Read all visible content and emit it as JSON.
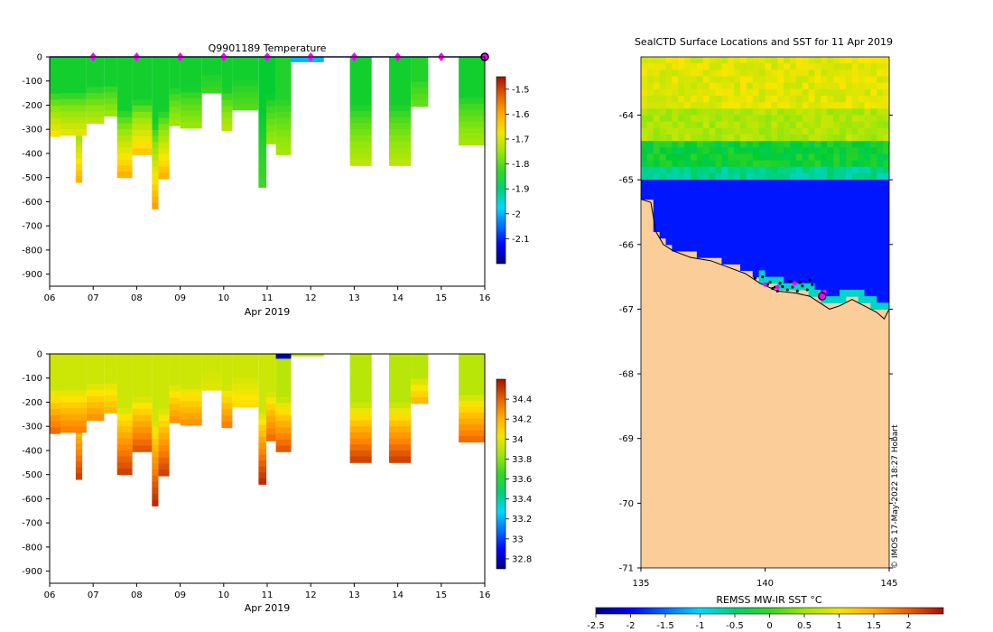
{
  "copyright": "© IMOS 17-May-2022 18:27 Hobart",
  "chart_data": [
    {
      "type": "heatmap",
      "title": "Q9901189  Temperature",
      "xlabel": "Apr 2019",
      "x_ticks": [
        "06",
        "07",
        "08",
        "09",
        "10",
        "11",
        "12",
        "13",
        "14",
        "15",
        "16"
      ],
      "x_range_days": [
        6,
        16
      ],
      "y_ticks": [
        "0",
        "-100",
        "-200",
        "-300",
        "-400",
        "-500",
        "-600",
        "-700",
        "-800",
        "-900"
      ],
      "y_range": [
        -950,
        0
      ],
      "colorbar_ticks": [
        "-1.5",
        "-1.6",
        "-1.7",
        "-1.8",
        "-1.9",
        "-2",
        "-2.1"
      ],
      "colorbar_range": [
        -2.2,
        -1.45
      ],
      "profile_marker_days": [
        7,
        8,
        9,
        10,
        11,
        12,
        13,
        14,
        15
      ],
      "profiles": [
        {
          "t0": 6.0,
          "t1": 6.25,
          "max_depth": 330,
          "surface": -1.85,
          "bottom": -1.66
        },
        {
          "t0": 6.25,
          "t1": 6.85,
          "max_depth": 325,
          "surface": -1.85,
          "bottom": -1.68
        },
        {
          "t0": 6.6,
          "t1": 6.75,
          "max_depth": 520,
          "surface": -1.85,
          "bottom": -1.6
        },
        {
          "t0": 6.85,
          "t1": 7.25,
          "max_depth": 275,
          "surface": -1.85,
          "bottom": -1.72
        },
        {
          "t0": 7.25,
          "t1": 7.55,
          "max_depth": 245,
          "surface": -1.85,
          "bottom": -1.75
        },
        {
          "t0": 7.55,
          "t1": 7.9,
          "max_depth": 500,
          "surface": -1.85,
          "bottom": -1.6
        },
        {
          "t0": 7.9,
          "t1": 8.35,
          "max_depth": 405,
          "surface": -1.85,
          "bottom": -1.62
        },
        {
          "t0": 8.35,
          "t1": 8.5,
          "max_depth": 630,
          "surface": -1.85,
          "bottom": -1.58
        },
        {
          "t0": 8.5,
          "t1": 8.75,
          "max_depth": 505,
          "surface": -1.85,
          "bottom": -1.6
        },
        {
          "t0": 8.75,
          "t1": 9.0,
          "max_depth": 285,
          "surface": -1.85,
          "bottom": -1.74
        },
        {
          "t0": 9.0,
          "t1": 9.5,
          "max_depth": 295,
          "surface": -1.85,
          "bottom": -1.75
        },
        {
          "t0": 9.5,
          "t1": 9.95,
          "max_depth": 150,
          "surface": -1.85,
          "bottom": -1.82
        },
        {
          "t0": 9.95,
          "t1": 10.2,
          "max_depth": 305,
          "surface": -1.85,
          "bottom": -1.72
        },
        {
          "t0": 10.2,
          "t1": 10.8,
          "max_depth": 220,
          "surface": -1.85,
          "bottom": -1.8
        },
        {
          "t0": 10.8,
          "t1": 10.98,
          "max_depth": 540,
          "surface": -1.86,
          "bottom": -1.82
        },
        {
          "t0": 10.98,
          "t1": 11.2,
          "max_depth": 360,
          "surface": -1.86,
          "bottom": -1.75
        },
        {
          "t0": 11.2,
          "t1": 11.55,
          "max_depth": 405,
          "surface": -1.84,
          "bottom": -1.74
        },
        {
          "t0": 11.55,
          "t1": 12.3,
          "max_depth": 20,
          "surface": -2.0,
          "bottom": -2.0
        },
        {
          "t0": 12.9,
          "t1": 13.4,
          "max_depth": 450,
          "surface": -1.85,
          "bottom": -1.72
        },
        {
          "t0": 13.8,
          "t1": 14.3,
          "max_depth": 450,
          "surface": -1.85,
          "bottom": -1.72
        },
        {
          "t0": 14.3,
          "t1": 14.7,
          "max_depth": 205,
          "surface": -1.84,
          "bottom": -1.79
        },
        {
          "t0": 15.4,
          "t1": 16.0,
          "max_depth": 365,
          "surface": -1.85,
          "bottom": -1.74
        }
      ]
    },
    {
      "type": "heatmap",
      "title": "",
      "xlabel": "Apr 2019",
      "x_ticks": [
        "06",
        "07",
        "08",
        "09",
        "10",
        "11",
        "12",
        "13",
        "14",
        "15",
        "16"
      ],
      "x_range_days": [
        6,
        16
      ],
      "y_ticks": [
        "0",
        "-100",
        "-200",
        "-300",
        "-400",
        "-500",
        "-600",
        "-700",
        "-800",
        "-900"
      ],
      "y_range": [
        -950,
        0
      ],
      "colorbar_ticks": [
        "34.4",
        "34.2",
        "34",
        "33.8",
        "33.6",
        "33.4",
        "33.2",
        "33",
        "32.8"
      ],
      "colorbar_range": [
        32.7,
        34.6
      ],
      "profiles": [
        {
          "t0": 6.0,
          "t1": 6.25,
          "max_depth": 330,
          "surface": 33.95,
          "bottom": 34.4
        },
        {
          "t0": 6.25,
          "t1": 6.85,
          "max_depth": 325,
          "surface": 33.95,
          "bottom": 34.35
        },
        {
          "t0": 6.6,
          "t1": 6.75,
          "max_depth": 520,
          "surface": 33.95,
          "bottom": 34.5
        },
        {
          "t0": 6.85,
          "t1": 7.25,
          "max_depth": 275,
          "surface": 33.95,
          "bottom": 34.3
        },
        {
          "t0": 7.25,
          "t1": 7.55,
          "max_depth": 245,
          "surface": 33.95,
          "bottom": 34.2
        },
        {
          "t0": 7.55,
          "t1": 7.9,
          "max_depth": 500,
          "surface": 33.95,
          "bottom": 34.5
        },
        {
          "t0": 7.9,
          "t1": 8.35,
          "max_depth": 405,
          "surface": 33.95,
          "bottom": 34.45
        },
        {
          "t0": 8.35,
          "t1": 8.5,
          "max_depth": 630,
          "surface": 33.95,
          "bottom": 34.55
        },
        {
          "t0": 8.5,
          "t1": 8.75,
          "max_depth": 505,
          "surface": 33.95,
          "bottom": 34.5
        },
        {
          "t0": 8.75,
          "t1": 9.0,
          "max_depth": 285,
          "surface": 33.95,
          "bottom": 34.3
        },
        {
          "t0": 9.0,
          "t1": 9.5,
          "max_depth": 295,
          "surface": 33.95,
          "bottom": 34.3
        },
        {
          "t0": 9.5,
          "t1": 9.95,
          "max_depth": 150,
          "surface": 33.95,
          "bottom": 34.0
        },
        {
          "t0": 9.95,
          "t1": 10.2,
          "max_depth": 305,
          "surface": 33.95,
          "bottom": 34.35
        },
        {
          "t0": 10.2,
          "t1": 10.8,
          "max_depth": 220,
          "surface": 33.95,
          "bottom": 34.1
        },
        {
          "t0": 10.8,
          "t1": 10.98,
          "max_depth": 540,
          "surface": 33.95,
          "bottom": 34.55
        },
        {
          "t0": 10.98,
          "t1": 11.2,
          "max_depth": 360,
          "surface": 33.95,
          "bottom": 34.4
        },
        {
          "t0": 11.2,
          "t1": 11.55,
          "max_depth": 405,
          "surface": 33.9,
          "bottom": 34.45
        },
        {
          "t0": 12.9,
          "t1": 13.4,
          "max_depth": 450,
          "surface": 33.9,
          "bottom": 34.5
        },
        {
          "t0": 13.8,
          "t1": 14.3,
          "max_depth": 450,
          "surface": 33.9,
          "bottom": 34.5
        },
        {
          "t0": 14.3,
          "t1": 14.7,
          "max_depth": 205,
          "surface": 33.9,
          "bottom": 34.2
        },
        {
          "t0": 15.4,
          "t1": 16.0,
          "max_depth": 365,
          "surface": 33.9,
          "bottom": 34.4
        }
      ],
      "surface_segments": [
        {
          "t0": 11.2,
          "t1": 11.55,
          "depth": 20,
          "value": 32.8
        },
        {
          "t0": 11.55,
          "t1": 12.3,
          "depth": 10,
          "value": 33.9
        }
      ]
    },
    {
      "type": "heatmap",
      "title": "SealCTD Surface Locations and SST for 11 Apr 2019",
      "xlabel": "",
      "x_ticks": [
        "135",
        "140",
        "145"
      ],
      "x_range": [
        135,
        145
      ],
      "y_ticks": [
        "-64",
        "-65",
        "-66",
        "-67",
        "-68",
        "-69",
        "-70",
        "-71"
      ],
      "y_range": [
        -71,
        -63.1
      ],
      "colorbar_label": "REMSS MW-IR SST °C",
      "colorbar_ticks": [
        "-2.5",
        "-2",
        "-1.5",
        "-1",
        "-0.5",
        "0",
        "0.5",
        "1",
        "1.5",
        "2"
      ],
      "colorbar_range": [
        -2.5,
        2.5
      ],
      "sst_zones": [
        {
          "lat_top": -63.1,
          "lat_bottom": -63.9,
          "sst": 0.9
        },
        {
          "lat_top": -63.9,
          "lat_bottom": -64.4,
          "sst": 0.6
        },
        {
          "lat_top": -64.4,
          "lat_bottom": -64.75,
          "sst": -0.2
        },
        {
          "lat_top": -64.75,
          "lat_bottom": -65.0,
          "sst": -0.6
        },
        {
          "lat_top": -65.0,
          "lat_bottom": -67.0,
          "sst": -1.9
        }
      ],
      "seal_surface_positions": [
        {
          "lon": 140.1,
          "lat": -66.62
        },
        {
          "lon": 140.3,
          "lat": -66.68
        },
        {
          "lon": 140.5,
          "lat": -66.72
        },
        {
          "lon": 140.7,
          "lat": -66.65
        },
        {
          "lon": 140.9,
          "lat": -66.7
        },
        {
          "lon": 141.1,
          "lat": -66.66
        },
        {
          "lon": 141.3,
          "lat": -66.72
        },
        {
          "lon": 141.5,
          "lat": -66.64
        },
        {
          "lon": 141.7,
          "lat": -66.7
        },
        {
          "lon": 141.9,
          "lat": -66.62
        },
        {
          "lon": 140.2,
          "lat": -66.58
        },
        {
          "lon": 140.6,
          "lat": -66.6
        },
        {
          "lon": 141.0,
          "lat": -66.57
        },
        {
          "lon": 141.4,
          "lat": -66.59
        },
        {
          "lon": 140.4,
          "lat": -66.66
        },
        {
          "lon": 139.6,
          "lat": -66.52
        },
        {
          "lon": 139.9,
          "lat": -66.5
        },
        {
          "lon": 141.8,
          "lat": -66.55
        }
      ],
      "highlight_positions": [
        {
          "lon": 140.0,
          "lat": -66.62
        },
        {
          "lon": 140.5,
          "lat": -66.66
        },
        {
          "lon": 141.2,
          "lat": -66.6
        },
        {
          "lon": 142.4,
          "lat": -66.73
        }
      ],
      "current_position": {
        "lon": 142.3,
        "lat": -66.8
      }
    }
  ]
}
